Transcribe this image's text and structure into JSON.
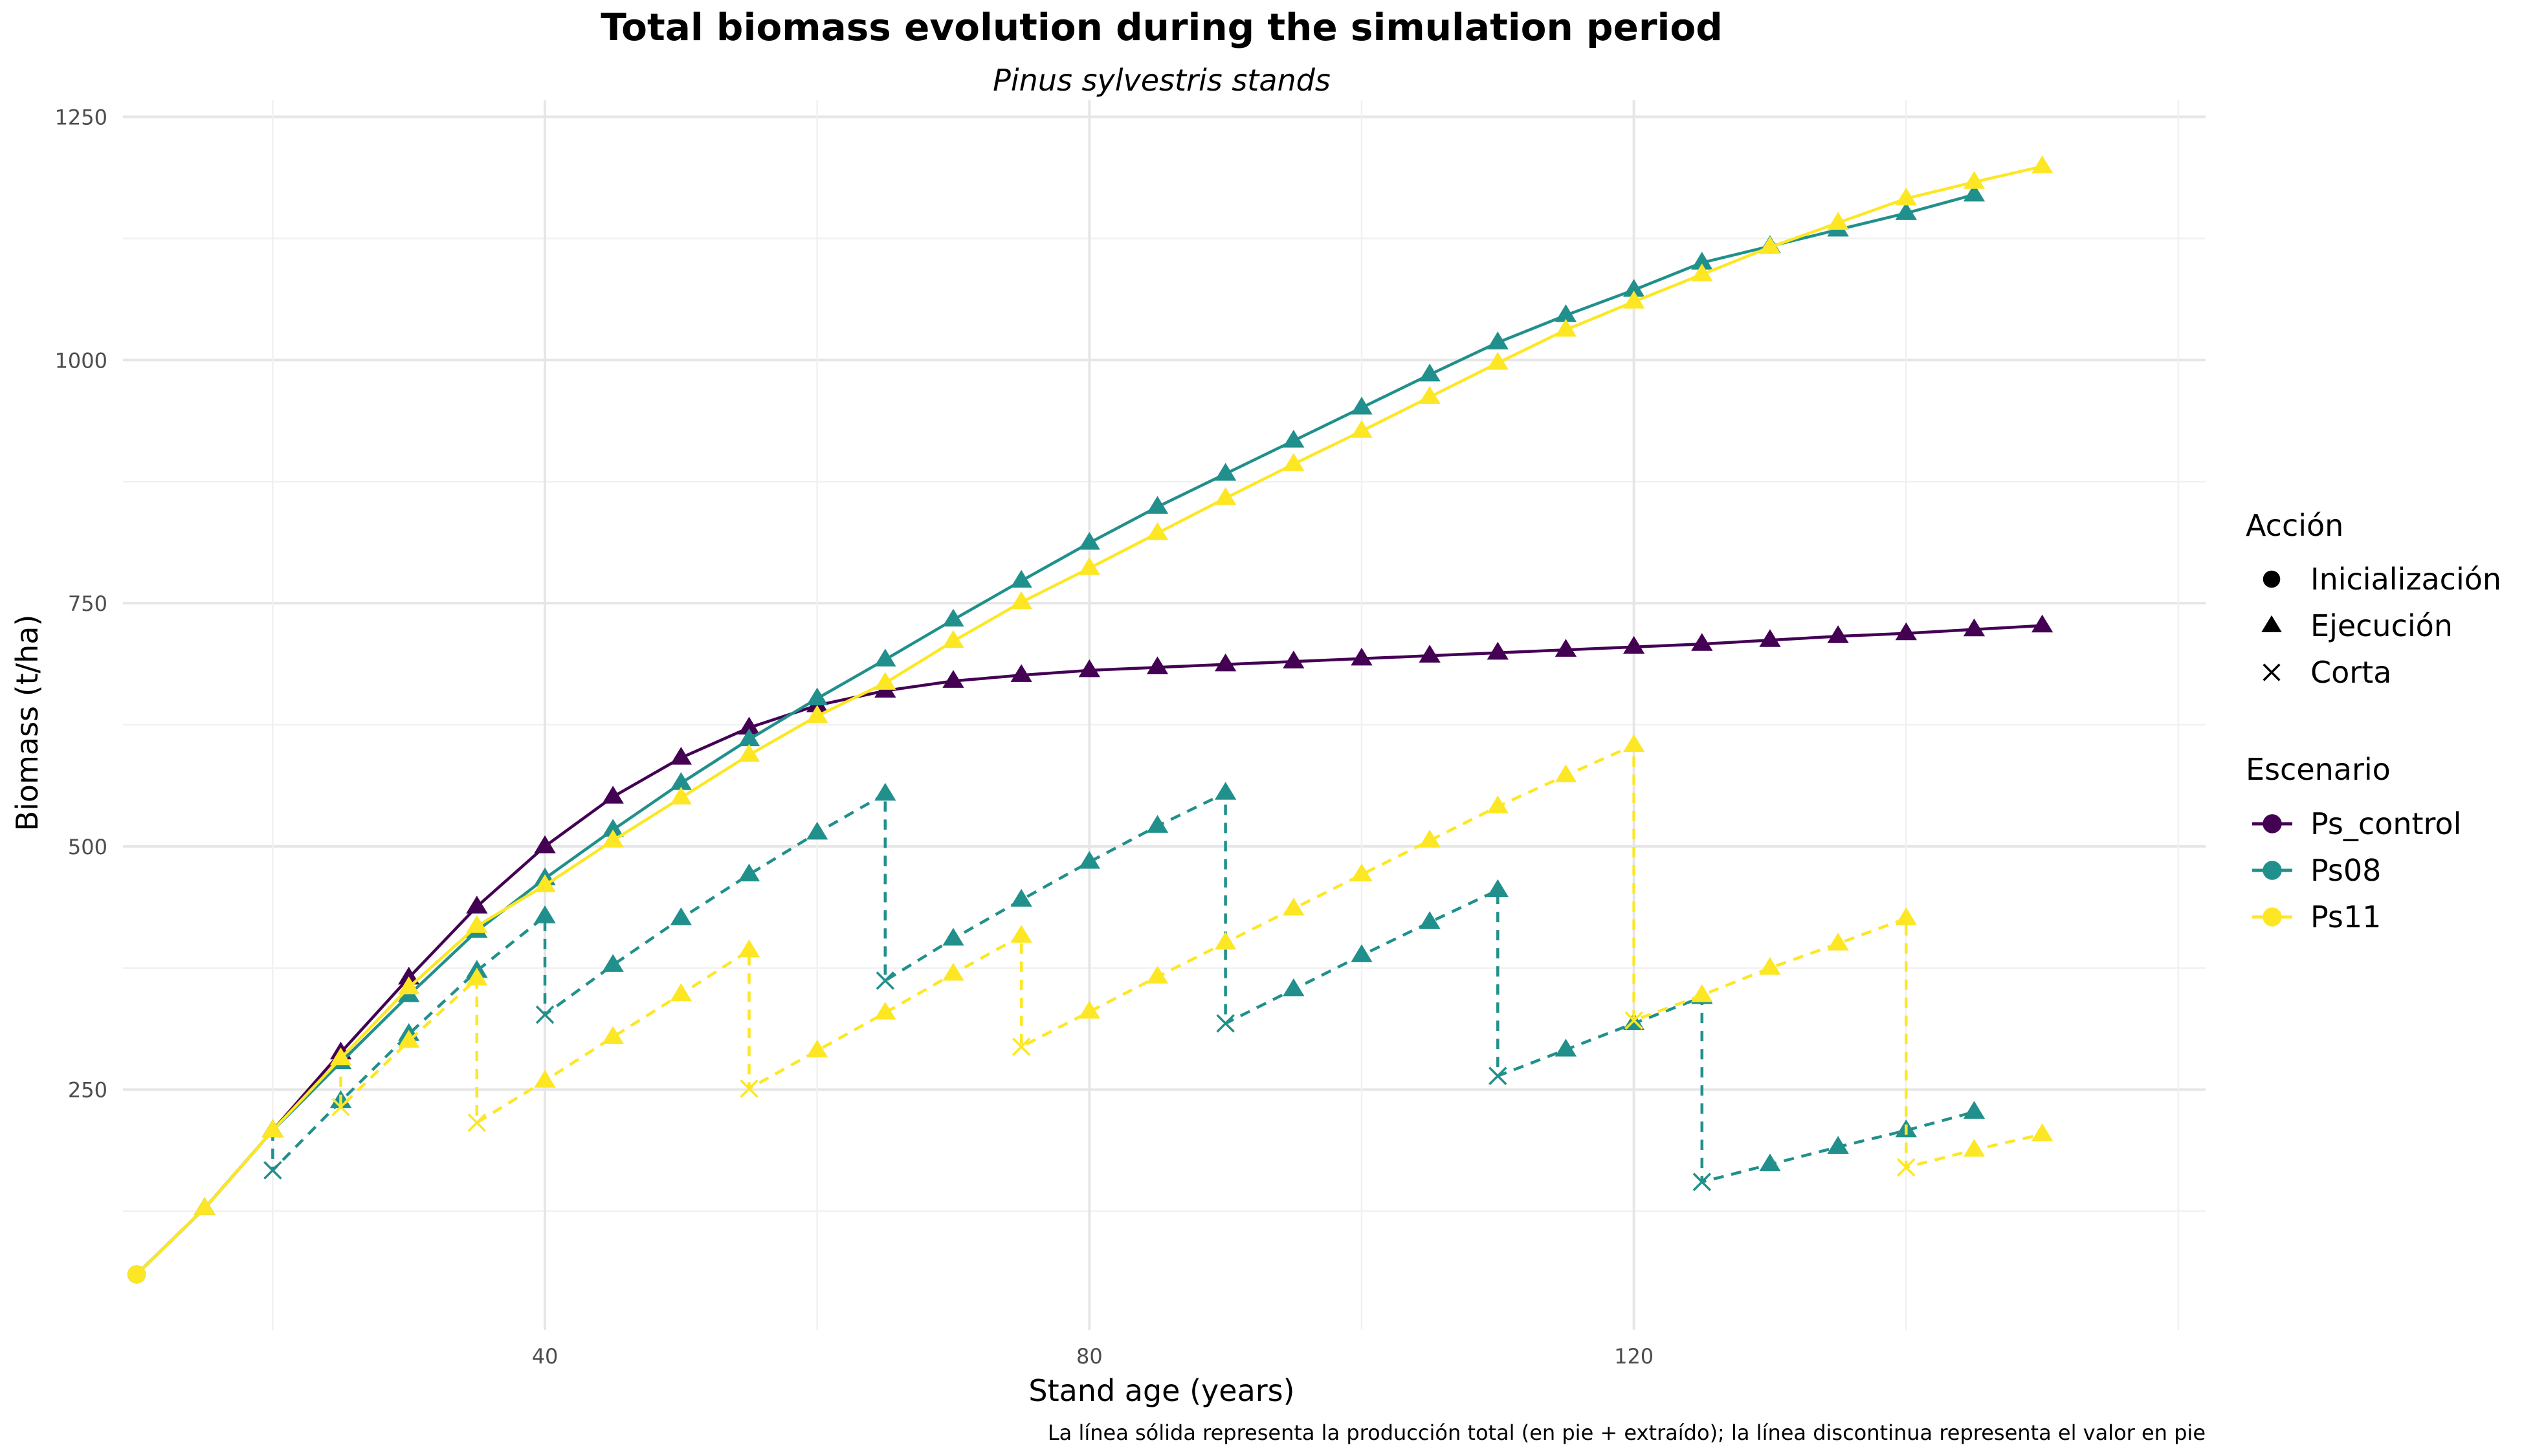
{
  "chart_data": {
    "type": "line",
    "title": "Total biomass evolution during the simulation period",
    "subtitle": "Pinus sylvestris stands",
    "xlabel": "Stand age (years)",
    "ylabel": "Biomass (t/ha)",
    "caption": "La línea sólida representa la producción total (en pie + extraído); la línea discontinua representa el valor en pie",
    "xlim": [
      9,
      162
    ],
    "ylim": [
      3,
      1267
    ],
    "xticks": [
      40,
      80,
      120
    ],
    "xtick_labels": [
      "40",
      "80",
      "120"
    ],
    "yticks": [
      250,
      500,
      750,
      1000,
      1250
    ],
    "ytick_labels": [
      "250",
      "500",
      "750",
      "1000",
      "1250"
    ],
    "grid": true,
    "legend_position": "right",
    "legend_shape": {
      "title": "Acción",
      "items": [
        {
          "label": "Inicialización",
          "shape": "circle"
        },
        {
          "label": "Ejecución",
          "shape": "triangle"
        },
        {
          "label": "Corta",
          "shape": "cross"
        }
      ]
    },
    "legend_color": {
      "title": "Escenario",
      "items": [
        {
          "label": "Ps_control",
          "color": "#440154"
        },
        {
          "label": "Ps08",
          "color": "#21908C"
        },
        {
          "label": "Ps11",
          "color": "#FDE725"
        }
      ]
    },
    "series": [
      {
        "name": "Ps_control",
        "color": "#440154",
        "line": "solid",
        "points": [
          [
            10,
            60,
            "circle"
          ],
          [
            15,
            128,
            "triangle"
          ],
          [
            20,
            208,
            "triangle"
          ],
          [
            25,
            288,
            "triangle"
          ],
          [
            30,
            365,
            "triangle"
          ],
          [
            35,
            438,
            "triangle"
          ],
          [
            40,
            500,
            "triangle"
          ],
          [
            45,
            551,
            "triangle"
          ],
          [
            50,
            591,
            "triangle"
          ],
          [
            55,
            622,
            "triangle"
          ],
          [
            60,
            645,
            "triangle"
          ],
          [
            65,
            660,
            "triangle"
          ],
          [
            70,
            670,
            "triangle"
          ],
          [
            75,
            676,
            "triangle"
          ],
          [
            80,
            681,
            "triangle"
          ],
          [
            85,
            684,
            "triangle"
          ],
          [
            90,
            687,
            "triangle"
          ],
          [
            95,
            690,
            "triangle"
          ],
          [
            100,
            693,
            "triangle"
          ],
          [
            105,
            696,
            "triangle"
          ],
          [
            110,
            699,
            "triangle"
          ],
          [
            115,
            702,
            "triangle"
          ],
          [
            120,
            705,
            "triangle"
          ],
          [
            125,
            708,
            "triangle"
          ],
          [
            130,
            712,
            "triangle"
          ],
          [
            135,
            716,
            "triangle"
          ],
          [
            140,
            719,
            "triangle"
          ],
          [
            145,
            723,
            "triangle"
          ],
          [
            150,
            727,
            "triangle"
          ]
        ]
      },
      {
        "name": "Ps08",
        "color": "#21908C",
        "line": "solid",
        "points": [
          [
            10,
            60,
            "circle"
          ],
          [
            15,
            128,
            "triangle"
          ],
          [
            20,
            208,
            "triangle"
          ],
          [
            25,
            278,
            "triangle"
          ],
          [
            30,
            347,
            "triangle"
          ],
          [
            35,
            413,
            "triangle"
          ],
          [
            40,
            467,
            "triangle"
          ],
          [
            45,
            517,
            "triangle"
          ],
          [
            50,
            565,
            "triangle"
          ],
          [
            55,
            610,
            "triangle"
          ],
          [
            60,
            652,
            "triangle"
          ],
          [
            65,
            692,
            "triangle"
          ],
          [
            70,
            733,
            "triangle"
          ],
          [
            75,
            773,
            "triangle"
          ],
          [
            80,
            812,
            "triangle"
          ],
          [
            85,
            849,
            "triangle"
          ],
          [
            90,
            883,
            "triangle"
          ],
          [
            95,
            917,
            "triangle"
          ],
          [
            100,
            951,
            "triangle"
          ],
          [
            105,
            985,
            "triangle"
          ],
          [
            110,
            1018,
            "triangle"
          ],
          [
            115,
            1046,
            "triangle"
          ],
          [
            120,
            1072,
            "triangle"
          ],
          [
            125,
            1100,
            "triangle"
          ],
          [
            130,
            1117,
            "triangle"
          ],
          [
            135,
            1134,
            "triangle"
          ],
          [
            140,
            1151,
            "triangle"
          ],
          [
            145,
            1170,
            "triangle"
          ]
        ]
      },
      {
        "name": "Ps11",
        "color": "#FDE725",
        "line": "solid",
        "points": [
          [
            10,
            60,
            "circle"
          ],
          [
            15,
            128,
            "triangle"
          ],
          [
            20,
            208,
            "triangle"
          ],
          [
            25,
            282,
            "triangle"
          ],
          [
            30,
            355,
            "triangle"
          ],
          [
            35,
            418,
            "triangle"
          ],
          [
            40,
            460,
            "triangle"
          ],
          [
            45,
            506,
            "triangle"
          ],
          [
            50,
            550,
            "triangle"
          ],
          [
            55,
            594,
            "triangle"
          ],
          [
            60,
            634,
            "triangle"
          ],
          [
            65,
            668,
            "triangle"
          ],
          [
            70,
            711,
            "triangle"
          ],
          [
            75,
            751,
            "triangle"
          ],
          [
            80,
            786,
            "triangle"
          ],
          [
            85,
            822,
            "triangle"
          ],
          [
            90,
            858,
            "triangle"
          ],
          [
            95,
            893,
            "triangle"
          ],
          [
            100,
            927,
            "triangle"
          ],
          [
            105,
            962,
            "triangle"
          ],
          [
            110,
            997,
            "triangle"
          ],
          [
            115,
            1031,
            "triangle"
          ],
          [
            120,
            1060,
            "triangle"
          ],
          [
            125,
            1088,
            "triangle"
          ],
          [
            130,
            1116,
            "triangle"
          ],
          [
            135,
            1141,
            "triangle"
          ],
          [
            140,
            1166,
            "triangle"
          ],
          [
            145,
            1183,
            "triangle"
          ],
          [
            150,
            1199,
            "triangle"
          ]
        ]
      },
      {
        "name": "Ps08",
        "color": "#21908C",
        "line": "dashed",
        "points": [
          [
            20,
            208,
            "triangle"
          ],
          [
            20,
            167,
            "cross"
          ],
          [
            25,
            238,
            "triangle"
          ],
          [
            30,
            307,
            "triangle"
          ],
          [
            35,
            372,
            "triangle"
          ],
          [
            40,
            428,
            "triangle"
          ],
          [
            40,
            327,
            "cross"
          ],
          [
            45,
            378,
            "triangle"
          ],
          [
            50,
            426,
            "triangle"
          ],
          [
            55,
            471,
            "triangle"
          ],
          [
            60,
            514,
            "triangle"
          ],
          [
            65,
            554,
            "triangle"
          ],
          [
            65,
            362,
            "cross"
          ],
          [
            70,
            405,
            "triangle"
          ],
          [
            75,
            445,
            "triangle"
          ],
          [
            80,
            484,
            "triangle"
          ],
          [
            85,
            521,
            "triangle"
          ],
          [
            90,
            555,
            "triangle"
          ],
          [
            90,
            318,
            "cross"
          ],
          [
            95,
            353,
            "triangle"
          ],
          [
            100,
            388,
            "triangle"
          ],
          [
            105,
            422,
            "triangle"
          ],
          [
            110,
            455,
            "triangle"
          ],
          [
            110,
            264,
            "cross"
          ],
          [
            115,
            291,
            "triangle"
          ],
          [
            120,
            318,
            "triangle"
          ],
          [
            125,
            345,
            "triangle"
          ],
          [
            125,
            155,
            "cross"
          ],
          [
            130,
            173,
            "triangle"
          ],
          [
            135,
            191,
            "triangle"
          ],
          [
            140,
            208,
            "triangle"
          ],
          [
            145,
            227,
            "triangle"
          ]
        ]
      },
      {
        "name": "Ps11",
        "color": "#FDE725",
        "line": "dashed",
        "points": [
          [
            25,
            282,
            "triangle"
          ],
          [
            25,
            232,
            "cross"
          ],
          [
            30,
            300,
            "triangle"
          ],
          [
            35,
            364,
            "triangle"
          ],
          [
            35,
            216,
            "cross"
          ],
          [
            40,
            259,
            "triangle"
          ],
          [
            45,
            304,
            "triangle"
          ],
          [
            50,
            348,
            "triangle"
          ],
          [
            55,
            393,
            "triangle"
          ],
          [
            55,
            251,
            "cross"
          ],
          [
            60,
            290,
            "triangle"
          ],
          [
            65,
            329,
            "triangle"
          ],
          [
            70,
            369,
            "triangle"
          ],
          [
            75,
            408,
            "triangle"
          ],
          [
            75,
            294,
            "cross"
          ],
          [
            80,
            330,
            "triangle"
          ],
          [
            85,
            366,
            "triangle"
          ],
          [
            90,
            401,
            "triangle"
          ],
          [
            95,
            436,
            "triangle"
          ],
          [
            100,
            471,
            "triangle"
          ],
          [
            105,
            506,
            "triangle"
          ],
          [
            110,
            541,
            "triangle"
          ],
          [
            115,
            573,
            "triangle"
          ],
          [
            120,
            604,
            "triangle"
          ],
          [
            120,
            321,
            "cross"
          ],
          [
            125,
            347,
            "triangle"
          ],
          [
            130,
            375,
            "triangle"
          ],
          [
            135,
            400,
            "triangle"
          ],
          [
            140,
            426,
            "triangle"
          ],
          [
            140,
            170,
            "cross"
          ],
          [
            145,
            188,
            "triangle"
          ],
          [
            150,
            204,
            "triangle"
          ]
        ]
      }
    ]
  }
}
